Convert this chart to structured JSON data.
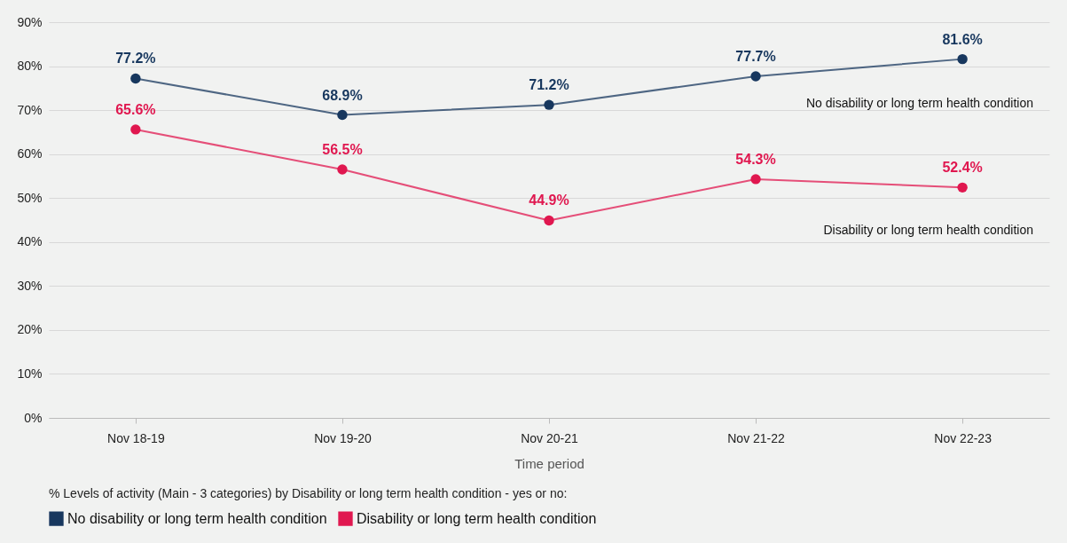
{
  "chart_data": {
    "type": "line",
    "categories": [
      "Nov 18-19",
      "Nov 19-20",
      "Nov 20-21",
      "Nov 21-22",
      "Nov 22-23"
    ],
    "series": [
      {
        "name": "No disability or long term health condition",
        "color": "#17375e",
        "values": [
          77.2,
          68.9,
          71.2,
          77.7,
          81.6
        ],
        "value_labels": [
          "77.2%",
          "68.9%",
          "71.2%",
          "77.7%",
          "81.6%"
        ]
      },
      {
        "name": "Disability or long term health condition",
        "color": "#e0174f",
        "values": [
          65.6,
          56.5,
          44.9,
          54.3,
          52.4
        ],
        "value_labels": [
          "65.6%",
          "56.5%",
          "44.9%",
          "54.3%",
          "52.4%"
        ]
      }
    ],
    "xlabel": "Time period",
    "legend_title": "% Levels of activity (Main - 3 categories) by Disability or long term health condition - yes or no:",
    "legend": "bottom",
    "ylim": [
      0,
      90
    ],
    "yticks": [
      {
        "value": 0,
        "label": "0%"
      },
      {
        "value": 10,
        "label": "10%"
      },
      {
        "value": 20,
        "label": "20%"
      },
      {
        "value": 30,
        "label": "30%"
      },
      {
        "value": 40,
        "label": "40%"
      },
      {
        "value": 50,
        "label": "50%"
      },
      {
        "value": 60,
        "label": "60%"
      },
      {
        "value": 70,
        "label": "70%"
      },
      {
        "value": 80,
        "label": "80%"
      },
      {
        "value": 90,
        "label": "90%"
      }
    ],
    "grid": "y",
    "marker": "circle",
    "line_style": "solid",
    "annotations": [
      "No disability or long term health condition",
      "Disability or long term health condition"
    ]
  }
}
